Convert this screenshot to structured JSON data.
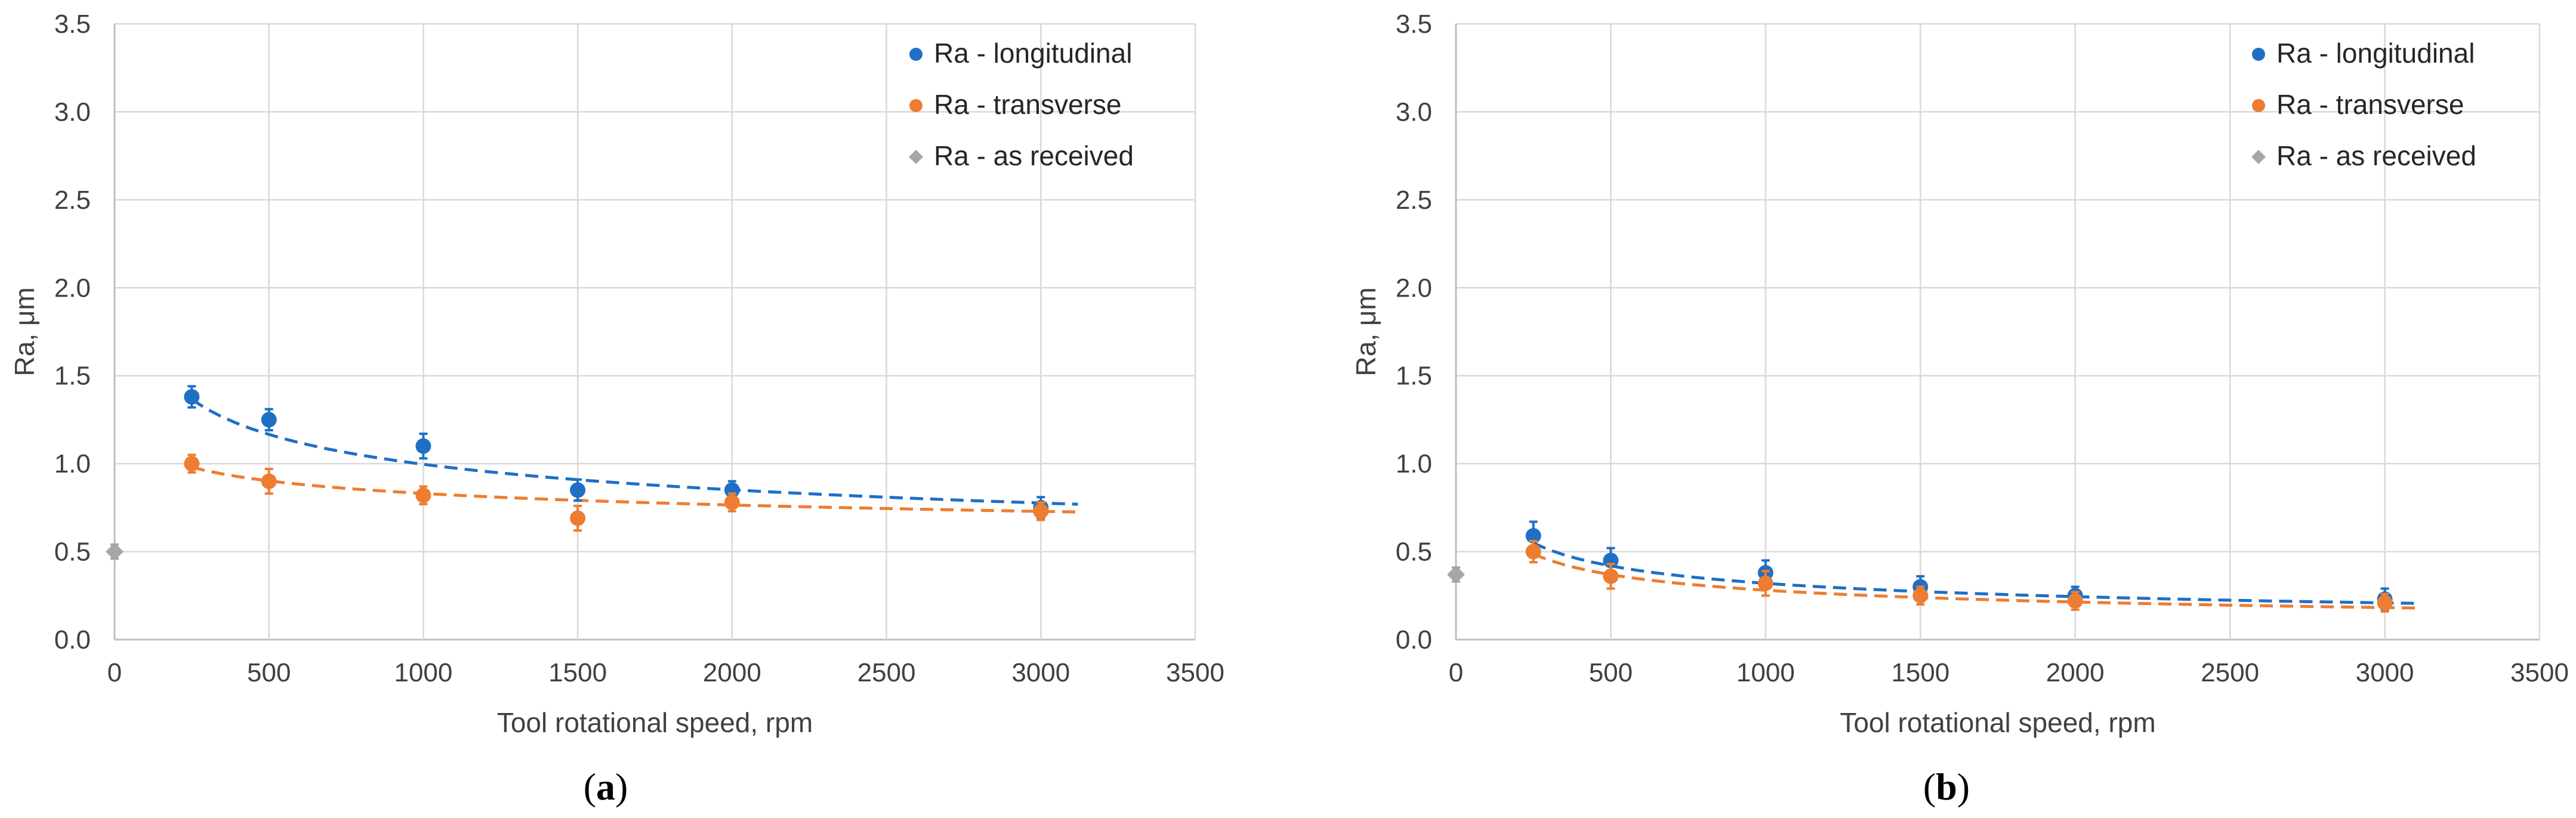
{
  "chart_data": [
    {
      "type": "scatter",
      "panel": "a",
      "caption": {
        "open": "(",
        "letter": "a",
        "close": ")"
      },
      "xlabel": "Tool rotational speed,  rpm",
      "ylabel": "Ra,  μm",
      "xlim": [
        0,
        3500
      ],
      "ylim": [
        0,
        3.5
      ],
      "xticks": [
        "0",
        "500",
        "1000",
        "1500",
        "2000",
        "2500",
        "3000",
        "3500"
      ],
      "yticks": [
        "0.0",
        "0.5",
        "1.0",
        "1.5",
        "2.0",
        "2.5",
        "3.0",
        "3.5"
      ],
      "grid": true,
      "legend_position": "top-right",
      "series": [
        {
          "name": "Ra - longitudinal",
          "color": "#1f6fc5",
          "marker": "circle",
          "x": [
            250,
            500,
            1000,
            1500,
            2000,
            3000
          ],
          "y": [
            1.38,
            1.25,
            1.1,
            0.85,
            0.85,
            0.75
          ],
          "err": [
            0.06,
            0.06,
            0.07,
            0.06,
            0.05,
            0.06
          ],
          "trend": {
            "type": "power",
            "a": 4.78,
            "b": -0.227,
            "x_from": 250,
            "x_to": 3120
          }
        },
        {
          "name": "Ra - transverse",
          "color": "#ed7d31",
          "marker": "circle",
          "x": [
            250,
            500,
            1000,
            1500,
            2000,
            3000
          ],
          "y": [
            1.0,
            0.9,
            0.82,
            0.69,
            0.78,
            0.73
          ],
          "err": [
            0.05,
            0.07,
            0.05,
            0.07,
            0.05,
            0.05
          ],
          "trend": {
            "type": "power",
            "a": 1.89,
            "b": -0.119,
            "x_from": 250,
            "x_to": 3120
          }
        },
        {
          "name": "Ra - as received",
          "color": "#a6a6a6",
          "marker": "diamond",
          "x": [
            0
          ],
          "y": [
            0.5
          ],
          "err": [
            0.04
          ]
        }
      ]
    },
    {
      "type": "scatter",
      "panel": "b",
      "caption": {
        "open": "(",
        "letter": "b",
        "close": ")"
      },
      "xlabel": "Tool rotational speed,  rpm",
      "ylabel": "Ra,  μm",
      "xlim": [
        0,
        3500
      ],
      "ylim": [
        0,
        3.5
      ],
      "xticks": [
        "0",
        "500",
        "1000",
        "1500",
        "2000",
        "2500",
        "3000",
        "3500"
      ],
      "yticks": [
        "0.0",
        "0.5",
        "1.0",
        "1.5",
        "2.0",
        "2.5",
        "3.0",
        "3.5"
      ],
      "grid": true,
      "legend_position": "top-right",
      "series": [
        {
          "name": "Ra - longitudinal",
          "color": "#1f6fc5",
          "marker": "circle",
          "x": [
            250,
            500,
            1000,
            1500,
            2000,
            3000
          ],
          "y": [
            0.59,
            0.45,
            0.38,
            0.3,
            0.25,
            0.23
          ],
          "err": [
            0.08,
            0.07,
            0.07,
            0.06,
            0.05,
            0.06
          ],
          "trend": {
            "type": "power",
            "a": 4.7,
            "b": -0.389,
            "x_from": 250,
            "x_to": 3100
          }
        },
        {
          "name": "Ra - transverse",
          "color": "#ed7d31",
          "marker": "circle",
          "x": [
            250,
            500,
            1000,
            1500,
            2000,
            3000
          ],
          "y": [
            0.5,
            0.36,
            0.32,
            0.25,
            0.22,
            0.21
          ],
          "err": [
            0.06,
            0.07,
            0.07,
            0.05,
            0.05,
            0.05
          ],
          "trend": {
            "type": "power",
            "a": 4.3,
            "b": -0.395,
            "x_from": 250,
            "x_to": 3100
          }
        },
        {
          "name": "Ra - as received",
          "color": "#a6a6a6",
          "marker": "diamond",
          "x": [
            0
          ],
          "y": [
            0.37
          ],
          "err": [
            0.04
          ]
        }
      ]
    }
  ]
}
